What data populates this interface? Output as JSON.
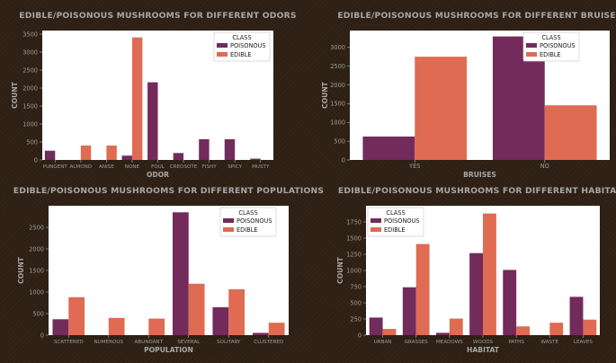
{
  "colors": {
    "poisonous": "#722b5b",
    "edible": "#df6b52",
    "background": "#2e2014",
    "plot_bg": "#ffffff",
    "text": "#a7a7a7"
  },
  "chart_data": [
    {
      "type": "bar",
      "title": "EDIBLE/POISONOUS MUSHROOMS FOR DIFFERENT ODORS",
      "xlabel": "ODOR",
      "ylabel": "COUNT",
      "categories": [
        "PUNGENT",
        "ALMOND",
        "ANISE",
        "NONE",
        "FOUL",
        "CREOSOTE",
        "FISHY",
        "SPICY",
        "MUSTY"
      ],
      "ylim": [
        0,
        3600
      ],
      "yticks": [
        0,
        500,
        1000,
        1500,
        2000,
        2500,
        3000,
        3500
      ],
      "legend_title": "CLASS",
      "legend_position": "top-right",
      "series": [
        {
          "name": "POISONOUS",
          "values": [
            256,
            0,
            0,
            120,
            2160,
            192,
            576,
            576,
            36
          ]
        },
        {
          "name": "EDIBLE",
          "values": [
            0,
            400,
            400,
            3408,
            0,
            0,
            0,
            0,
            0
          ]
        }
      ]
    },
    {
      "type": "bar",
      "title": "EDIBLE/POISONOUS MUSHROOMS FOR DIFFERENT BRUISES",
      "xlabel": "BRUISES",
      "ylabel": "COUNT",
      "categories": [
        "YES",
        "NO"
      ],
      "ylim": [
        0,
        3450
      ],
      "yticks": [
        0,
        500,
        1000,
        1500,
        2000,
        2500,
        3000
      ],
      "legend_title": "CLASS",
      "legend_position": "top-right",
      "series": [
        {
          "name": "POISONOUS",
          "values": [
            624,
            3292
          ]
        },
        {
          "name": "EDIBLE",
          "values": [
            2752,
            1456
          ]
        }
      ]
    },
    {
      "type": "bar",
      "title": "EDIBLE/POISONOUS MUSHROOMS FOR DIFFERENT POPULATIONS",
      "xlabel": "POPULATION",
      "ylabel": "COUNT",
      "categories": [
        "SCATTERED",
        "NUMEROUS",
        "ABUNDANT",
        "SEVERAL",
        "SOLITARY",
        "CLUSTERED"
      ],
      "ylim": [
        0,
        3000
      ],
      "yticks": [
        0,
        500,
        1000,
        1500,
        2000,
        2500
      ],
      "legend_title": "CLASS",
      "legend_position": "top-right",
      "series": [
        {
          "name": "POISONOUS",
          "values": [
            368,
            0,
            0,
            2848,
            648,
            52
          ]
        },
        {
          "name": "EDIBLE",
          "values": [
            880,
            400,
            384,
            1192,
            1064,
            288
          ]
        }
      ]
    },
    {
      "type": "bar",
      "title": "EDIBLE/POISONOUS MUSHROOMS FOR DIFFERENT HABITATS",
      "xlabel": "HABITAT",
      "ylabel": "COUNT",
      "categories": [
        "URBAN",
        "GRASSES",
        "MEADOWS",
        "WOODS",
        "PATHS",
        "WASTE",
        "LEAVES"
      ],
      "ylim": [
        0,
        2000
      ],
      "yticks": [
        0,
        250,
        500,
        750,
        1000,
        1250,
        1500,
        1750
      ],
      "legend_title": "CLASS",
      "legend_position": "top-left",
      "series": [
        {
          "name": "POISONOUS",
          "values": [
            272,
            740,
            36,
            1268,
            1008,
            0,
            592
          ]
        },
        {
          "name": "EDIBLE",
          "values": [
            96,
            1408,
            256,
            1880,
            136,
            192,
            240
          ]
        }
      ]
    }
  ]
}
